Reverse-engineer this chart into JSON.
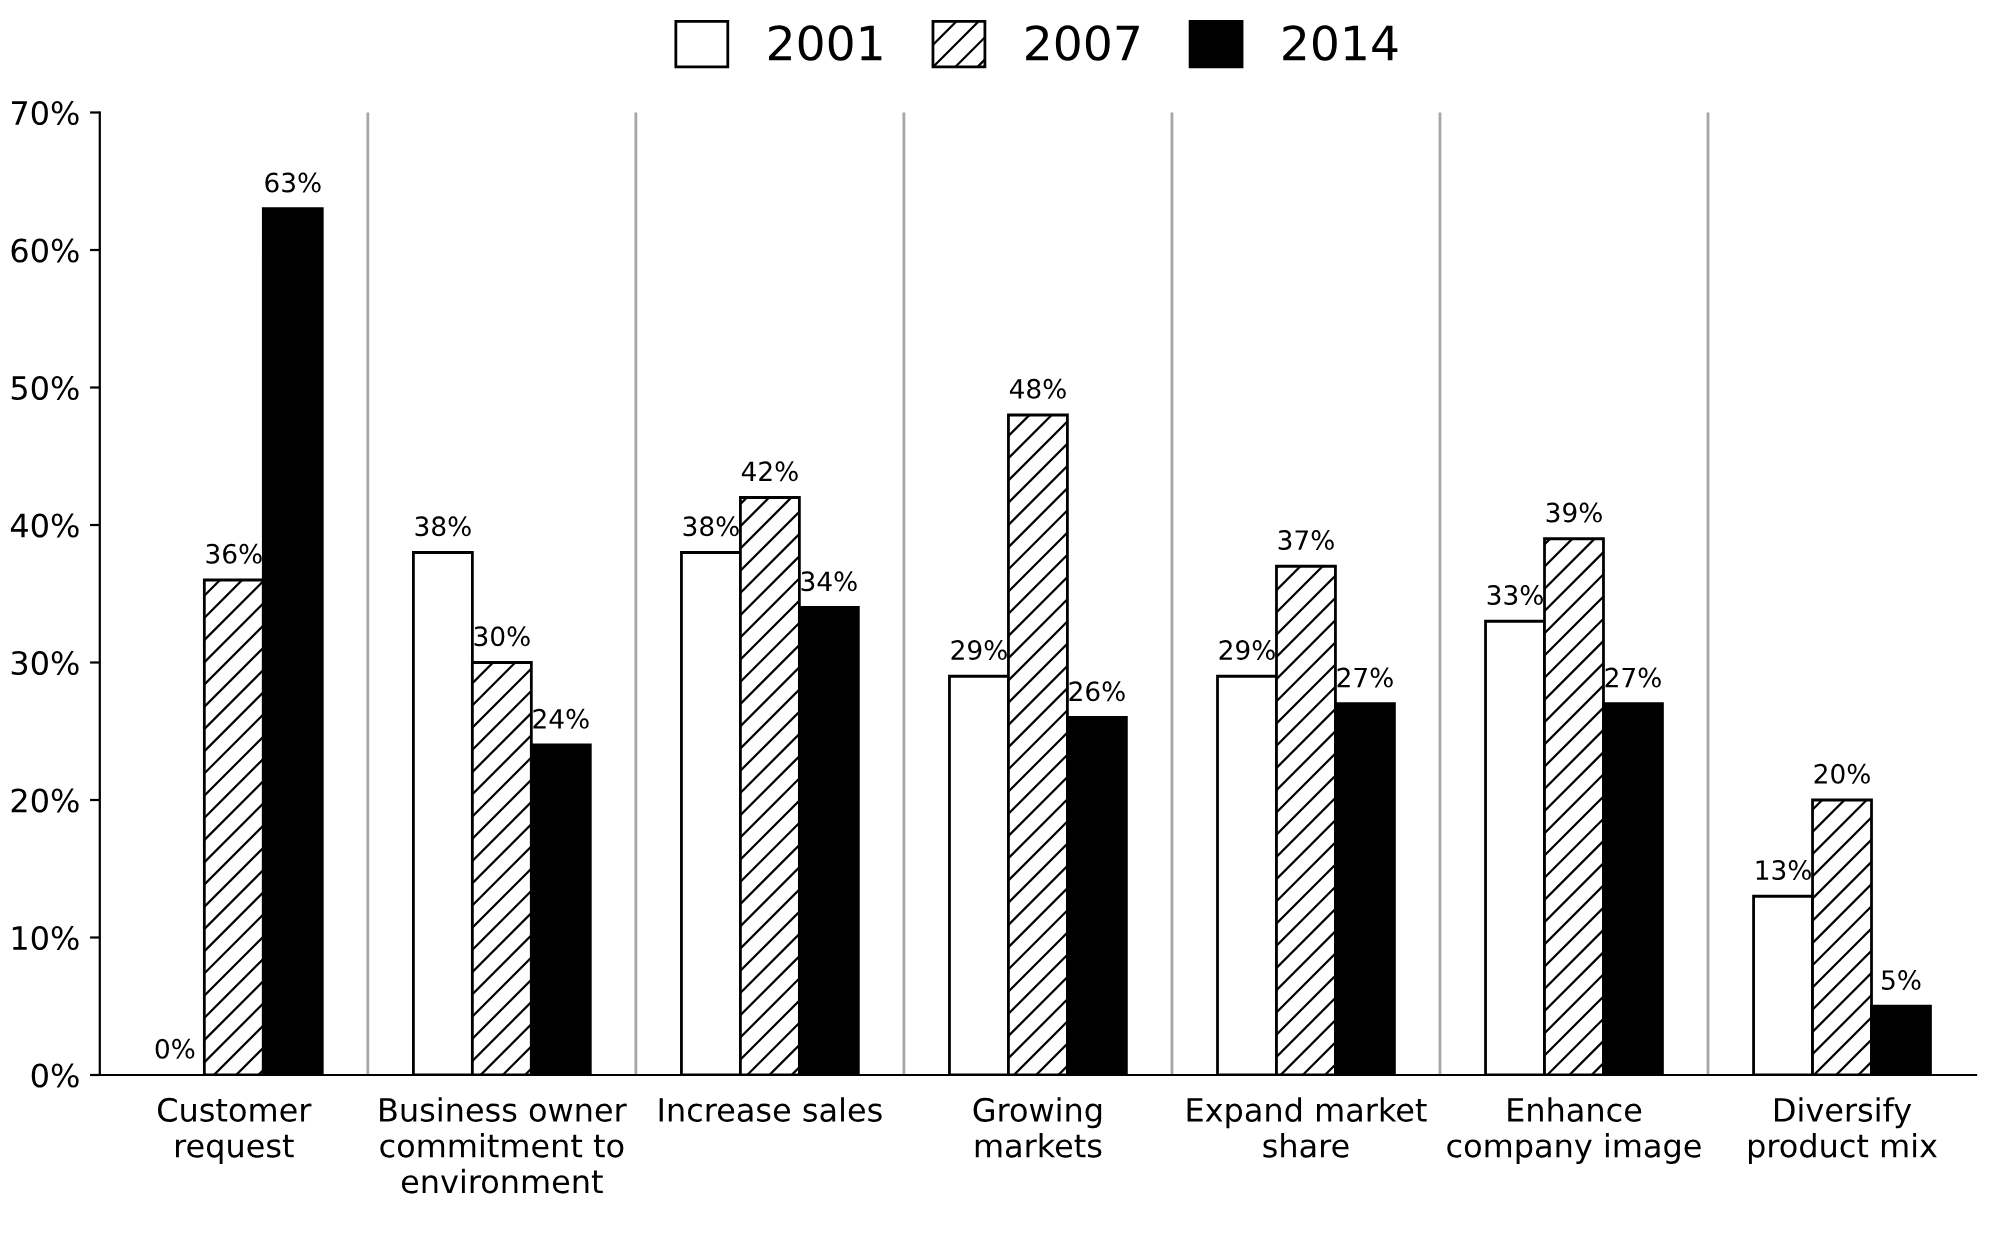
{
  "chart_data": {
    "type": "bar",
    "categories": [
      "Customer\nrequest",
      "Business owner\ncommitment to\nenvironment",
      "Increase sales",
      "Growing\nmarkets",
      "Expand market\nshare",
      "Enhance\ncompany image",
      "Diversify\nproduct mix"
    ],
    "series": [
      {
        "name": "2001",
        "color": "#ffffff",
        "values": [
          0,
          38,
          38,
          29,
          29,
          33,
          13
        ],
        "value_labels": [
          "0%",
          "38%",
          "38%",
          "29%",
          "29%",
          "33%",
          "13%"
        ]
      },
      {
        "name": "2007",
        "color": "#ffffff",
        "values": [
          36,
          30,
          42,
          48,
          37,
          39,
          20
        ],
        "value_labels": [
          "36%",
          "30%",
          "42%",
          "48%",
          "37%",
          "39%",
          "20%"
        ]
      },
      {
        "name": "2014",
        "color": "#000000",
        "values": [
          63,
          24,
          34,
          26,
          27,
          27,
          5
        ],
        "value_labels": [
          "63%",
          "24%",
          "34%",
          "26%",
          "27%",
          "27%",
          "5%"
        ]
      }
    ],
    "ylim": [
      0,
      70
    ],
    "yticks": [
      {
        "value": 0,
        "label": "0%"
      },
      {
        "value": 10,
        "label": "10%"
      },
      {
        "value": 20,
        "label": "20%"
      },
      {
        "value": 30,
        "label": "30%"
      },
      {
        "value": 40,
        "label": "40%"
      },
      {
        "value": 50,
        "label": "50%"
      },
      {
        "value": 60,
        "label": "60%"
      },
      {
        "value": 70,
        "label": "70%"
      }
    ],
    "grid": "x",
    "legend": "top"
  }
}
